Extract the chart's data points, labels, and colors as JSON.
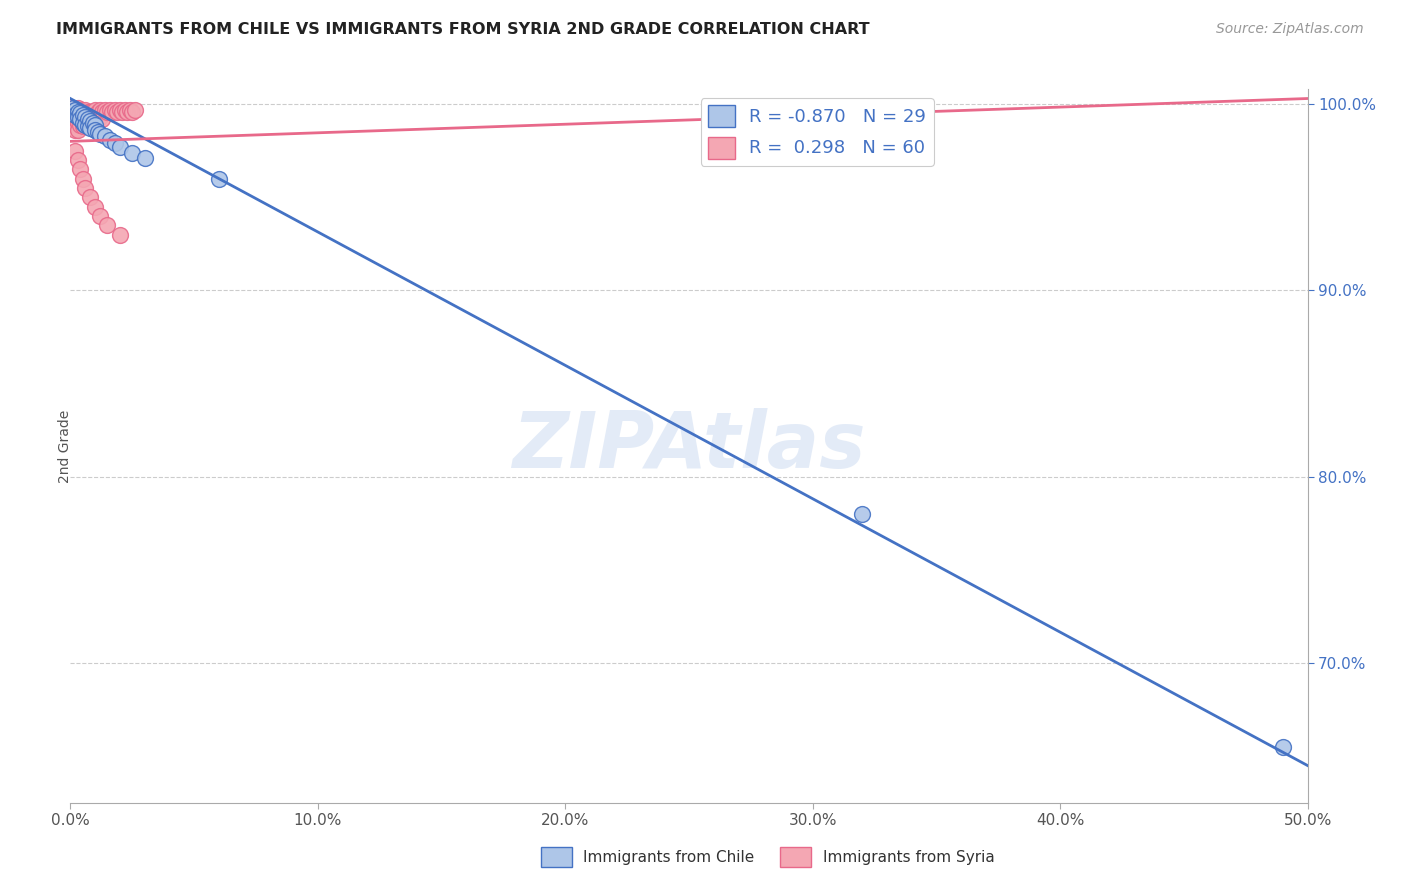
{
  "title": "IMMIGRANTS FROM CHILE VS IMMIGRANTS FROM SYRIA 2ND GRADE CORRELATION CHART",
  "source": "Source: ZipAtlas.com",
  "ylabel": "2nd Grade",
  "xmin": 0.0,
  "xmax": 0.5,
  "ymin": 0.625,
  "ymax": 1.008,
  "yticks": [
    0.7,
    0.8,
    0.9,
    1.0
  ],
  "ytick_labels": [
    "70.0%",
    "80.0%",
    "90.0%",
    "100.0%"
  ],
  "xticks": [
    0.0,
    0.1,
    0.2,
    0.3,
    0.4,
    0.5
  ],
  "xtick_labels": [
    "0.0%",
    "10.0%",
    "20.0%",
    "30.0%",
    "40.0%",
    "50.0%"
  ],
  "watermark": "ZIPAtlas",
  "legend_R1": "R = -0.870",
  "legend_N1": "N = 29",
  "legend_R2": "R =  0.298",
  "legend_N2": "N = 60",
  "blue_scatter_x": [
    0.001,
    0.002,
    0.002,
    0.003,
    0.003,
    0.004,
    0.004,
    0.005,
    0.005,
    0.006,
    0.006,
    0.007,
    0.007,
    0.008,
    0.008,
    0.009,
    0.01,
    0.01,
    0.011,
    0.012,
    0.014,
    0.016,
    0.018,
    0.02,
    0.025,
    0.03,
    0.06,
    0.32,
    0.49
  ],
  "blue_scatter_y": [
    0.998,
    0.997,
    0.994,
    0.996,
    0.993,
    0.995,
    0.992,
    0.994,
    0.99,
    0.993,
    0.989,
    0.992,
    0.988,
    0.991,
    0.987,
    0.99,
    0.989,
    0.986,
    0.985,
    0.984,
    0.983,
    0.981,
    0.979,
    0.977,
    0.974,
    0.971,
    0.96,
    0.78,
    0.655
  ],
  "pink_scatter_x": [
    0.001,
    0.001,
    0.001,
    0.002,
    0.002,
    0.002,
    0.002,
    0.003,
    0.003,
    0.003,
    0.003,
    0.004,
    0.004,
    0.004,
    0.005,
    0.005,
    0.005,
    0.006,
    0.006,
    0.006,
    0.007,
    0.007,
    0.007,
    0.008,
    0.008,
    0.008,
    0.009,
    0.009,
    0.01,
    0.01,
    0.01,
    0.011,
    0.011,
    0.012,
    0.012,
    0.013,
    0.013,
    0.014,
    0.015,
    0.016,
    0.017,
    0.018,
    0.019,
    0.02,
    0.021,
    0.022,
    0.023,
    0.024,
    0.025,
    0.026,
    0.002,
    0.003,
    0.004,
    0.005,
    0.006,
    0.008,
    0.01,
    0.012,
    0.015,
    0.02
  ],
  "pink_scatter_y": [
    0.998,
    0.994,
    0.99,
    0.997,
    0.993,
    0.989,
    0.986,
    0.998,
    0.994,
    0.99,
    0.986,
    0.997,
    0.993,
    0.989,
    0.996,
    0.992,
    0.988,
    0.997,
    0.993,
    0.989,
    0.996,
    0.992,
    0.988,
    0.996,
    0.992,
    0.988,
    0.996,
    0.992,
    0.997,
    0.993,
    0.989,
    0.996,
    0.992,
    0.997,
    0.993,
    0.996,
    0.992,
    0.997,
    0.996,
    0.997,
    0.996,
    0.997,
    0.996,
    0.997,
    0.996,
    0.997,
    0.996,
    0.997,
    0.996,
    0.997,
    0.975,
    0.97,
    0.965,
    0.96,
    0.955,
    0.95,
    0.945,
    0.94,
    0.935,
    0.93
  ],
  "blue_line_x": [
    0.0,
    0.5
  ],
  "blue_line_y": [
    1.003,
    0.645
  ],
  "pink_line_x": [
    0.0,
    0.5
  ],
  "pink_line_y": [
    0.98,
    1.003
  ],
  "blue_color": "#4472c4",
  "pink_color": "#e8698a",
  "blue_fill": "#aec6e8",
  "pink_fill": "#f4a7b3",
  "grid_color": "#cccccc",
  "axis_color": "#4472c4",
  "background_color": "#ffffff"
}
